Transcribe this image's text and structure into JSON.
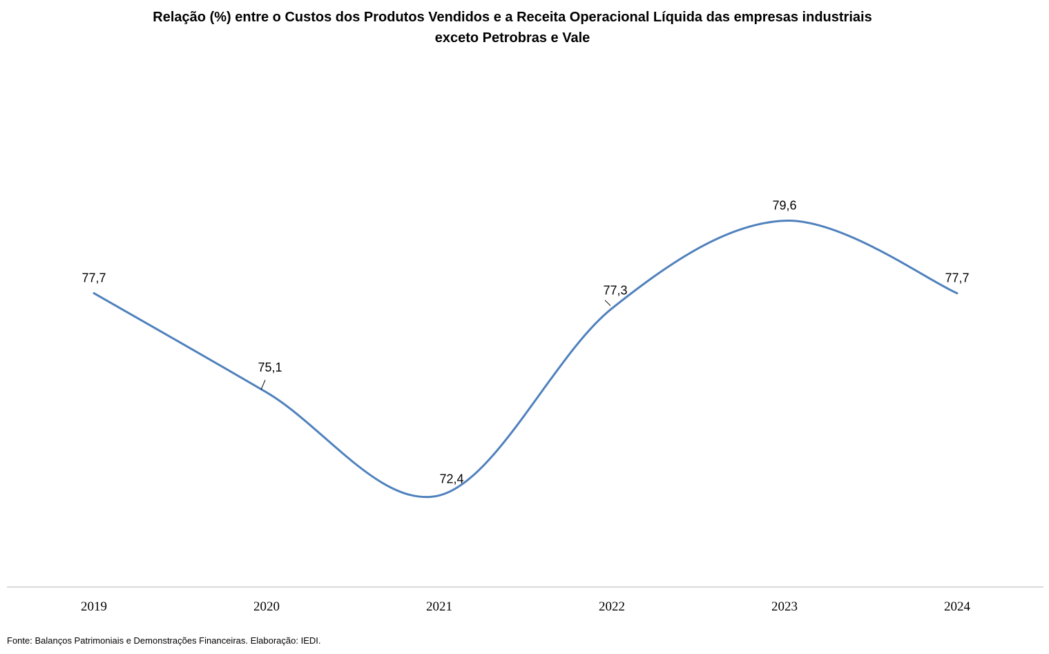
{
  "chart_data": {
    "type": "line",
    "title_lines": [
      "Relação (%) entre o Custos dos Produtos Vendidos e a Receita Operacional Líquida das empresas industriais",
      "exceto Petrobras e Vale"
    ],
    "categories": [
      "2019",
      "2020",
      "2021",
      "2022",
      "2023",
      "2024"
    ],
    "series": [
      {
        "values": [
          77.7,
          75.1,
          72.4,
          77.3,
          79.6,
          77.7
        ],
        "labels": [
          "77,7",
          "75,1",
          "72,4",
          "77,3",
          "79,6",
          "77,7"
        ],
        "color": "#4f81bd",
        "smooth": true
      }
    ],
    "xlabel": "",
    "ylabel": "",
    "ylim": [
      70,
      82
    ],
    "grid": false,
    "legend": "none"
  },
  "source_note": "Fonte: Balanços Patrimoniais e Demonstrações Financeiras. Elaboração: IEDI."
}
